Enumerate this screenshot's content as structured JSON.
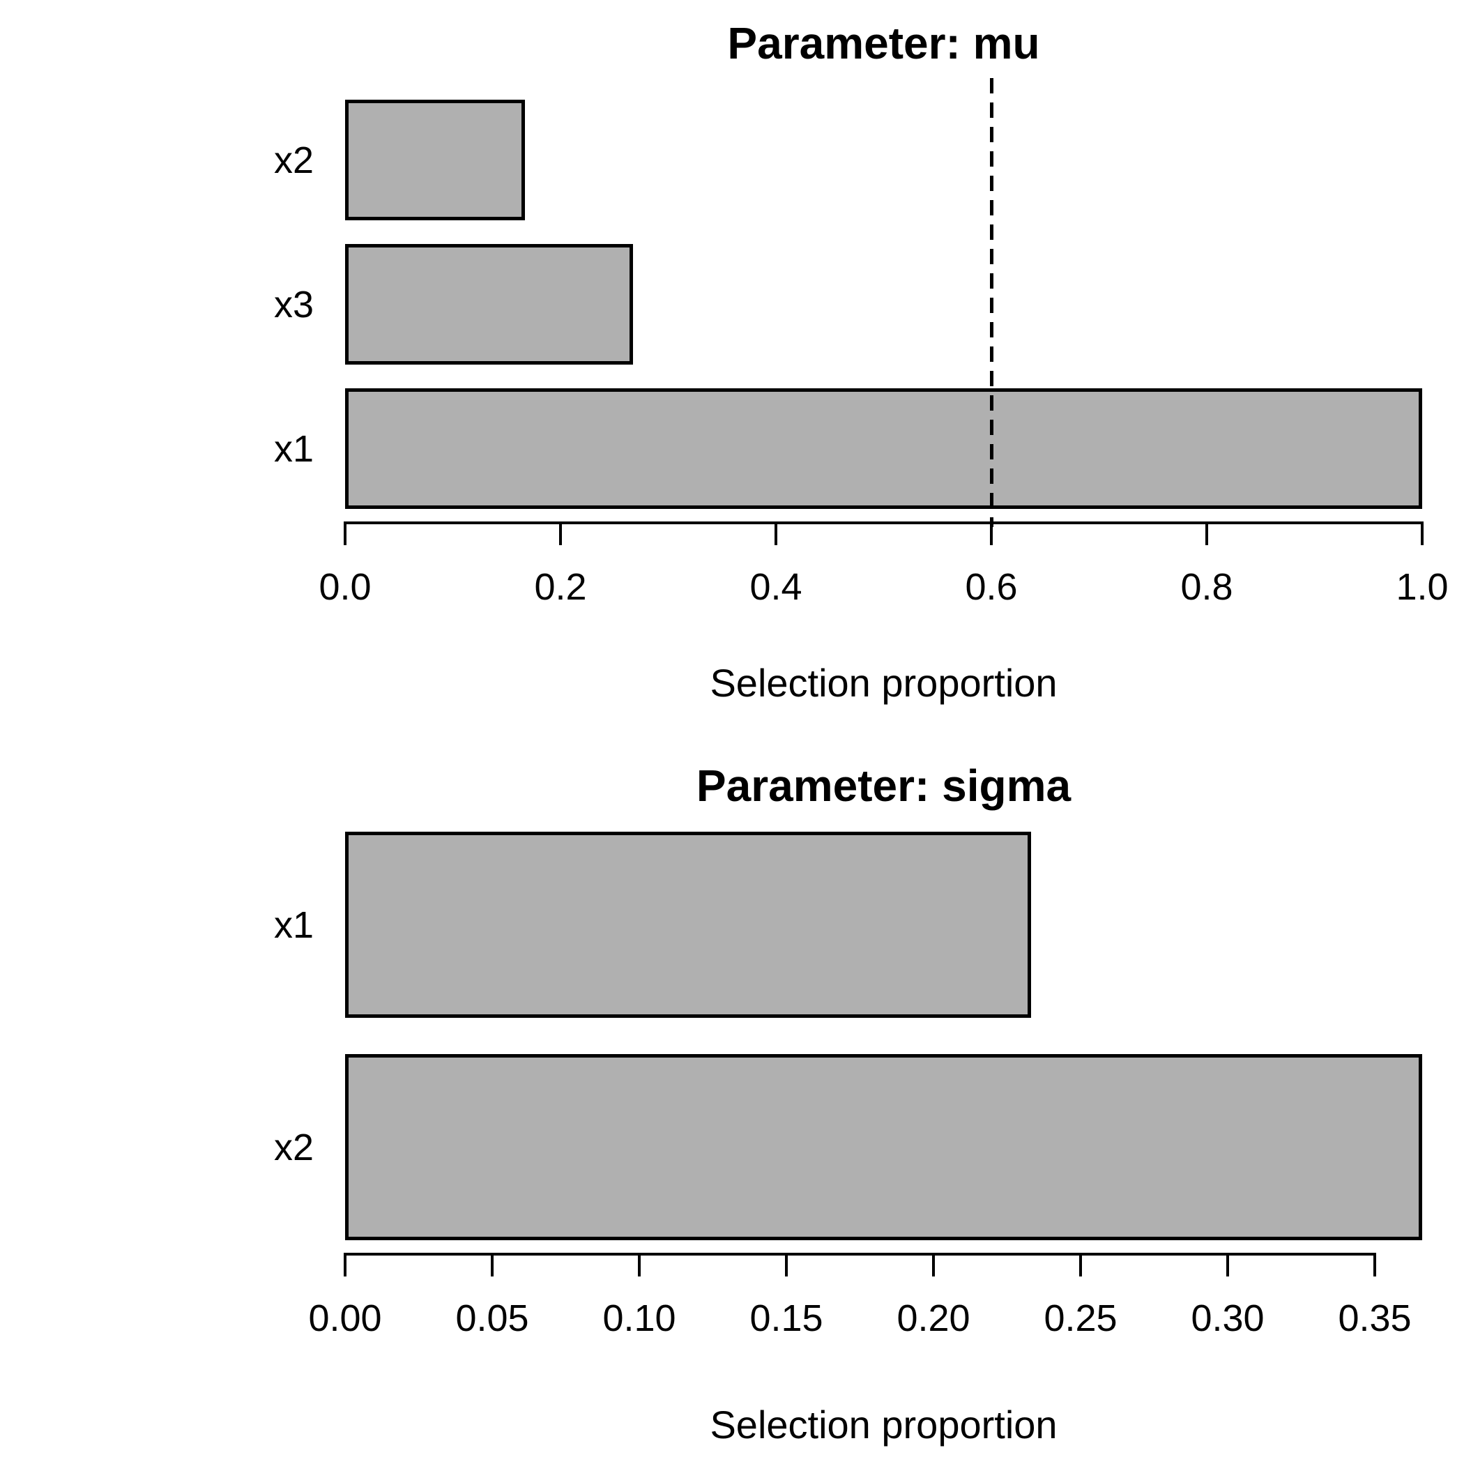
{
  "figure": {
    "background": "#ffffff",
    "bar_fill": "#b0b0b0",
    "bar_border": "#000000",
    "text_color": "#000000"
  },
  "chart_data": [
    {
      "type": "bar",
      "orientation": "horizontal",
      "title": "Parameter: mu",
      "xlabel": "Selection proportion",
      "ylabel": "",
      "categories": [
        "x2",
        "x3",
        "x1"
      ],
      "values": [
        0.167,
        0.267,
        1.0
      ],
      "xlim": [
        0,
        1.0
      ],
      "xticks": [
        {
          "label": "0.0",
          "value": 0.0
        },
        {
          "label": "0.2",
          "value": 0.2
        },
        {
          "label": "0.4",
          "value": 0.4
        },
        {
          "label": "0.6",
          "value": 0.6
        },
        {
          "label": "0.8",
          "value": 0.8
        },
        {
          "label": "1.0",
          "value": 1.0
        }
      ],
      "reference_line_x": 0.6,
      "reference_line_style": "dashed",
      "grid": false,
      "legend": false
    },
    {
      "type": "bar",
      "orientation": "horizontal",
      "title": "Parameter: sigma",
      "xlabel": "Selection proportion",
      "ylabel": "",
      "categories": [
        "x1",
        "x2"
      ],
      "values": [
        0.233,
        0.366
      ],
      "xlim": [
        0,
        0.366
      ],
      "xticks": [
        {
          "label": "0.00",
          "value": 0.0
        },
        {
          "label": "0.05",
          "value": 0.05
        },
        {
          "label": "0.10",
          "value": 0.1
        },
        {
          "label": "0.15",
          "value": 0.15
        },
        {
          "label": "0.20",
          "value": 0.2
        },
        {
          "label": "0.25",
          "value": 0.25
        },
        {
          "label": "0.30",
          "value": 0.3
        },
        {
          "label": "0.35",
          "value": 0.35
        }
      ],
      "reference_line_x": null,
      "reference_line_style": null,
      "grid": false,
      "legend": false
    }
  ]
}
